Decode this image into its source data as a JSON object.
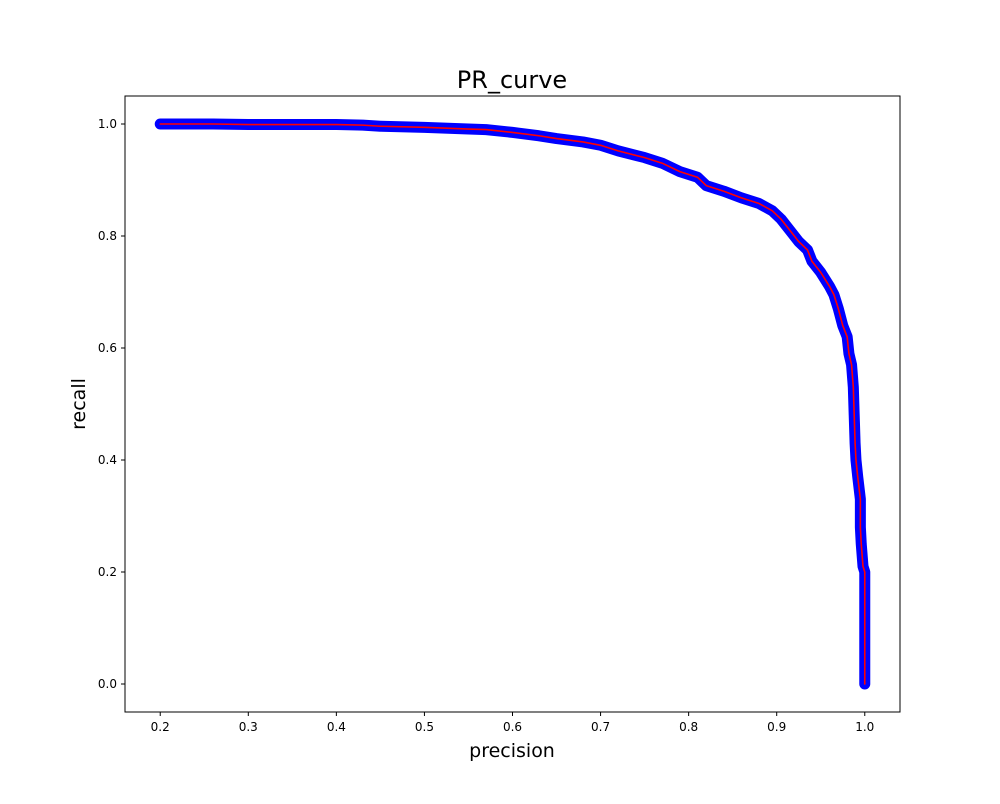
{
  "chart_data": {
    "type": "line",
    "title": "PR_curve",
    "xlabel": "precision",
    "ylabel": "recall",
    "xlim": [
      0.16,
      1.04
    ],
    "ylim": [
      -0.05,
      1.05
    ],
    "xticks": [
      "0.2",
      "0.3",
      "0.4",
      "0.5",
      "0.6",
      "0.7",
      "0.8",
      "0.9",
      "1.0"
    ],
    "yticks": [
      "0.0",
      "0.2",
      "0.4",
      "0.6",
      "0.8",
      "1.0"
    ],
    "grid": false,
    "legend": false,
    "colors": {
      "marker": "#0000ff",
      "line": "#ff0000"
    },
    "series": [
      {
        "points": [
          [
            0.2,
            1.0
          ],
          [
            0.26,
            1.0
          ],
          [
            0.3,
            0.999
          ],
          [
            0.35,
            0.999
          ],
          [
            0.4,
            0.999
          ],
          [
            0.43,
            0.998
          ],
          [
            0.45,
            0.996
          ],
          [
            0.5,
            0.994
          ],
          [
            0.55,
            0.991
          ],
          [
            0.57,
            0.99
          ],
          [
            0.6,
            0.985
          ],
          [
            0.63,
            0.979
          ],
          [
            0.65,
            0.974
          ],
          [
            0.68,
            0.968
          ],
          [
            0.7,
            0.962
          ],
          [
            0.72,
            0.952
          ],
          [
            0.75,
            0.94
          ],
          [
            0.77,
            0.93
          ],
          [
            0.79,
            0.915
          ],
          [
            0.81,
            0.905
          ],
          [
            0.82,
            0.89
          ],
          [
            0.84,
            0.88
          ],
          [
            0.86,
            0.868
          ],
          [
            0.88,
            0.858
          ],
          [
            0.895,
            0.845
          ],
          [
            0.905,
            0.83
          ],
          [
            0.915,
            0.81
          ],
          [
            0.925,
            0.79
          ],
          [
            0.935,
            0.775
          ],
          [
            0.94,
            0.755
          ],
          [
            0.95,
            0.735
          ],
          [
            0.96,
            0.71
          ],
          [
            0.965,
            0.695
          ],
          [
            0.97,
            0.67
          ],
          [
            0.975,
            0.64
          ],
          [
            0.98,
            0.62
          ],
          [
            0.982,
            0.59
          ],
          [
            0.985,
            0.57
          ],
          [
            0.987,
            0.53
          ],
          [
            0.988,
            0.48
          ],
          [
            0.989,
            0.43
          ],
          [
            0.99,
            0.4
          ],
          [
            0.992,
            0.37
          ],
          [
            0.995,
            0.33
          ],
          [
            0.995,
            0.28
          ],
          [
            0.996,
            0.25
          ],
          [
            0.998,
            0.21
          ],
          [
            1.0,
            0.2
          ],
          [
            1.0,
            0.15
          ],
          [
            1.0,
            0.1
          ],
          [
            1.0,
            0.05
          ],
          [
            1.0,
            0.0
          ]
        ]
      }
    ]
  }
}
